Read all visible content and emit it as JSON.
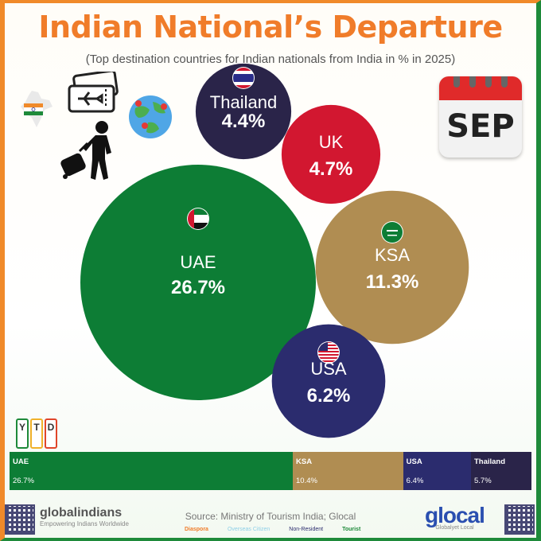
{
  "title": "Indian National’s Departure",
  "subtitle": "(Top destination countries for Indian nationals from India in % in 2025)",
  "calendar_label": "SEP",
  "ytd_letters": [
    "Y",
    "T",
    "D"
  ],
  "chart_data": {
    "type": "bubble",
    "title": "Indian National’s Departure",
    "subtitle": "(Top destination countries for Indian nationals from India in % in 2025)",
    "unit": "%",
    "bubbles": [
      {
        "name": "UAE",
        "value": 26.7,
        "label": "26.7%",
        "color": "#0d7d35"
      },
      {
        "name": "KSA",
        "value": 11.3,
        "label": "11.3%",
        "color": "#b08d52"
      },
      {
        "name": "USA",
        "value": 6.2,
        "label": "6.2%",
        "color": "#2b2c6e"
      },
      {
        "name": "UK",
        "value": 4.7,
        "label": "4.7%",
        "color": "#d21730"
      },
      {
        "name": "Thailand",
        "value": 4.4,
        "label": "4.4%",
        "color": "#2a2449"
      }
    ],
    "ytd_bar": {
      "type": "stacked-bar",
      "segments": [
        {
          "name": "UAE",
          "value": 26.7,
          "label": "26.7%",
          "color": "#0d7d35"
        },
        {
          "name": "KSA",
          "value": 10.4,
          "label": "10.4%",
          "color": "#b08d52"
        },
        {
          "name": "USA",
          "value": 6.4,
          "label": "6.4%",
          "color": "#2b2c6e"
        },
        {
          "name": "Thailand",
          "value": 5.7,
          "label": "5.7%",
          "color": "#2a2449"
        }
      ]
    }
  },
  "footer": {
    "source": "Source: Ministry of Tourism India; Glocal",
    "legend": [
      {
        "text": "Diaspora",
        "color": "#f07c2a"
      },
      {
        "text": "Overseas Citizen",
        "color": "#8fd0e8"
      },
      {
        "text": "Non-Resident",
        "color": "#2b2c6e"
      },
      {
        "text": "Tourist",
        "color": "#1e8a3a"
      }
    ],
    "left_brand": "globalindians",
    "left_tagline": "Empowering Indians Worldwide",
    "right_brand": "glocal",
    "right_tagline": "Globalyet Local"
  }
}
